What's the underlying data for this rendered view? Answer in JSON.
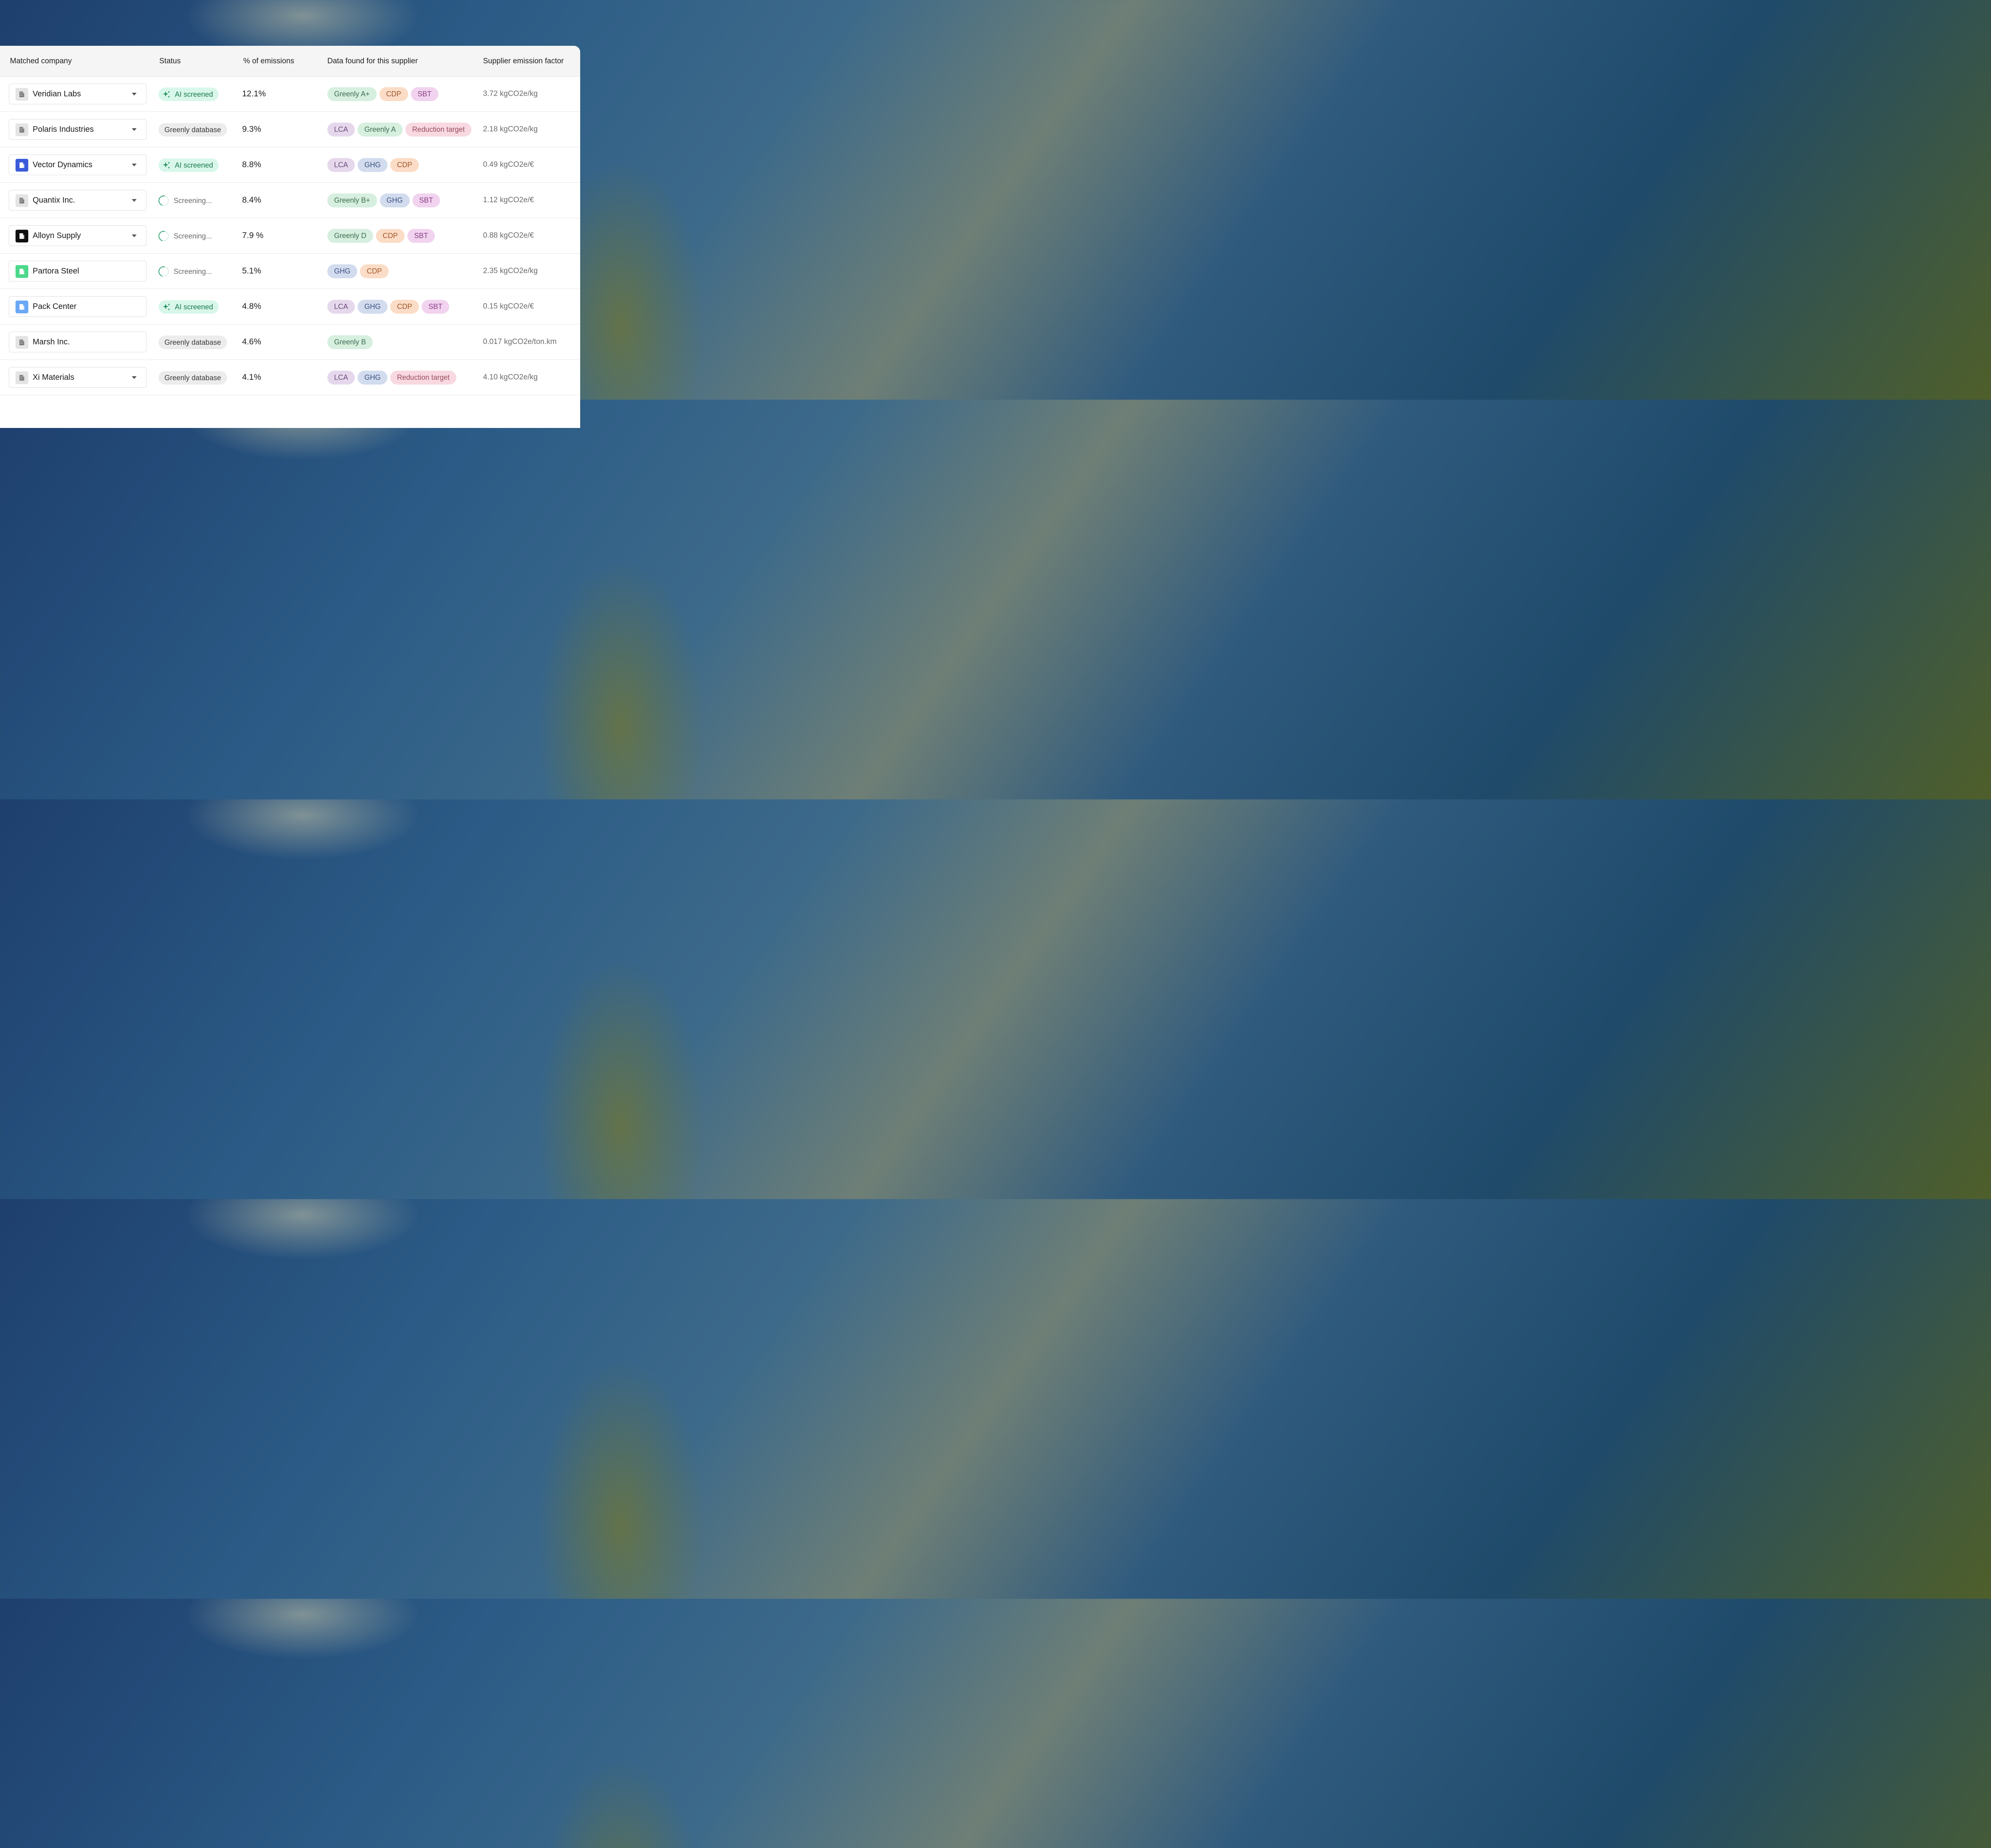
{
  "headers": {
    "company": "Matched company",
    "status": "Status",
    "emissions": "% of emissions",
    "data_found": "Data found for this supplier",
    "emission_factor": "Supplier emission factor"
  },
  "tag_colors": {
    "Greenly A+": {
      "bg": "#d6efdf",
      "fg": "#3f6f50"
    },
    "Greenly A": {
      "bg": "#d6efdf",
      "fg": "#3f6f50"
    },
    "Greenly B+": {
      "bg": "#d6efdf",
      "fg": "#3f6f50"
    },
    "Greenly B": {
      "bg": "#d6efdf",
      "fg": "#3f6f50"
    },
    "Greenly D": {
      "bg": "#d6efdf",
      "fg": "#3f6f50"
    },
    "CDP": {
      "bg": "#fbdcc6",
      "fg": "#a0562a"
    },
    "SBT": {
      "bg": "#f1d3ef",
      "fg": "#8a3f86"
    },
    "LCA": {
      "bg": "#e6d8ec",
      "fg": "#6b4a7a"
    },
    "GHG": {
      "bg": "#d2dcee",
      "fg": "#3e5283"
    },
    "Reduction target": {
      "bg": "#f8d9e2",
      "fg": "#9a4a5c"
    }
  },
  "rows": [
    {
      "company": "Veridian Labs",
      "icon": "building-icon",
      "icon_color": "#e4e4e4",
      "icon_fg": "#707070",
      "dropdown": true,
      "status": "AI screened",
      "status_type": "ai",
      "percent": "12.1%",
      "tags": [
        "Greenly A+",
        "CDP",
        "SBT"
      ],
      "factor": "3.72 kgCO2e/kg"
    },
    {
      "company": "Polaris Industries",
      "icon": "building-icon",
      "icon_color": "#e4e4e4",
      "icon_fg": "#707070",
      "dropdown": true,
      "status": "Greenly database",
      "status_type": "db",
      "percent": "9.3%",
      "tags": [
        "LCA",
        "Greenly A",
        "Reduction target"
      ],
      "factor": "2.18 kgCO2e/kg"
    },
    {
      "company": "Vector Dynamics",
      "icon": "building-icon",
      "icon_color": "#3a5bd9",
      "icon_fg": "#ffffff",
      "dropdown": true,
      "status": "AI screened",
      "status_type": "ai",
      "percent": "8.8%",
      "tags": [
        "LCA",
        "GHG",
        "CDP"
      ],
      "factor": "0.49 kgCO2e/€"
    },
    {
      "company": "Quantix Inc.",
      "icon": "building-icon",
      "icon_color": "#e4e4e4",
      "icon_fg": "#707070",
      "dropdown": true,
      "status": "Screening...",
      "status_type": "scr",
      "percent": "8.4%",
      "tags": [
        "Greenly B+",
        "GHG",
        "SBT"
      ],
      "factor": "1.12 kgCO2e/€"
    },
    {
      "company": "Alloyn Supply",
      "icon": "building-icon",
      "icon_color": "#111111",
      "icon_fg": "#ffffff",
      "dropdown": true,
      "status": "Screening...",
      "status_type": "scr",
      "percent": "7.9 %",
      "tags": [
        "Greenly D",
        "CDP",
        "SBT"
      ],
      "factor": "0.88 kgCO2e/€"
    },
    {
      "company": "Partora Steel",
      "icon": "building-icon",
      "icon_color": "#4cd88a",
      "icon_fg": "#ffffff",
      "dropdown": false,
      "status": "Screening...",
      "status_type": "scr",
      "percent": "5.1%",
      "tags": [
        "GHG",
        "CDP"
      ],
      "factor": "2.35 kgCO2e/kg"
    },
    {
      "company": "Pack Center",
      "icon": "building-icon",
      "icon_color": "#6aa8f5",
      "icon_fg": "#ffffff",
      "dropdown": false,
      "status": "AI screened",
      "status_type": "ai",
      "percent": "4.8%",
      "tags": [
        "LCA",
        "GHG",
        "CDP",
        "SBT"
      ],
      "factor": "0.15 kgCO2e/€"
    },
    {
      "company": "Marsh Inc.",
      "icon": "building-icon",
      "icon_color": "#e4e4e4",
      "icon_fg": "#707070",
      "dropdown": false,
      "status": "Greenly database",
      "status_type": "db",
      "percent": "4.6%",
      "tags": [
        "Greenly B"
      ],
      "factor": "0.017 kgCO2e/ton.km"
    },
    {
      "company": "Xi Materials",
      "icon": "building-icon",
      "icon_color": "#e4e4e4",
      "icon_fg": "#707070",
      "dropdown": true,
      "status": "Greenly database",
      "status_type": "db",
      "percent": "4.1%",
      "tags": [
        "LCA",
        "GHG",
        "Reduction target"
      ],
      "factor": "4.10 kgCO2e/kg"
    }
  ]
}
